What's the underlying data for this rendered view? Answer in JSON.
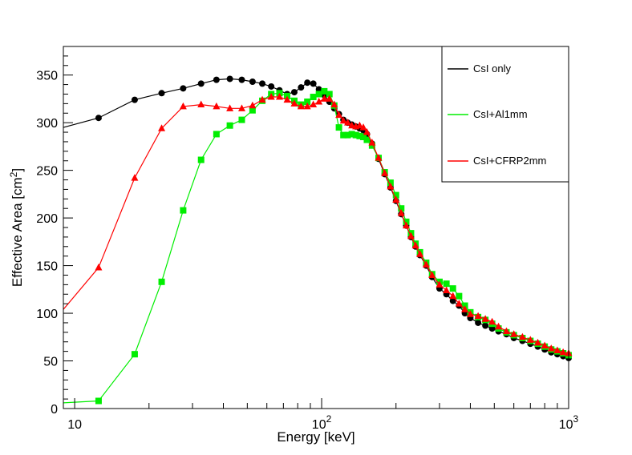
{
  "chart_data": {
    "type": "line",
    "title": "",
    "xlabel": "Energy [keV]",
    "ylabel_main": "Effective Area [cm",
    "ylabel_sup": "2",
    "ylabel_close": "]",
    "xscale": "log",
    "xlim": [
      9,
      1000
    ],
    "ylim": [
      0,
      380
    ],
    "x_tick_labels": [
      {
        "value": 10,
        "base": "10",
        "exp": ""
      },
      {
        "value": 100,
        "base": "10",
        "exp": "2"
      },
      {
        "value": 1000,
        "base": "10",
        "exp": "3"
      }
    ],
    "y_ticks": [
      0,
      50,
      100,
      150,
      200,
      250,
      300,
      350
    ],
    "legend_position": "top-right",
    "series": [
      {
        "name": "CsI only",
        "color": "#000000",
        "marker": "circle",
        "x": [
          9,
          12.5,
          17.5,
          22.5,
          27.5,
          32.5,
          37.5,
          42.5,
          47.5,
          52.5,
          57.5,
          62.5,
          67.5,
          72.5,
          77.5,
          82.5,
          87.5,
          92.5,
          97.5,
          102.5,
          107.5,
          112.5,
          117.5,
          122.5,
          127.5,
          132.5,
          137.5,
          142.5,
          147.5,
          152.5,
          160,
          170,
          180,
          190,
          200,
          210,
          220,
          230,
          240,
          250,
          265,
          280,
          300,
          320,
          340,
          360,
          380,
          400,
          430,
          460,
          490,
          520,
          560,
          600,
          650,
          700,
          750,
          800,
          850,
          900,
          950,
          1000
        ],
        "values": [
          295,
          305,
          324,
          331,
          336,
          341,
          345,
          346,
          345,
          343,
          341,
          338,
          334,
          330,
          332,
          337,
          342,
          341,
          335,
          329,
          322,
          315,
          309,
          303,
          300,
          298,
          296,
          294,
          292,
          288,
          278,
          262,
          246,
          232,
          218,
          204,
          192,
          180,
          170,
          161,
          150,
          138,
          126,
          120,
          113,
          108,
          100,
          95,
          90,
          87,
          84,
          81,
          78,
          74,
          71,
          68,
          65,
          62,
          59,
          57,
          55,
          53
        ]
      },
      {
        "name": "CsI+Al1mm",
        "color": "#00ee00",
        "marker": "square",
        "x": [
          9,
          12.5,
          17.5,
          22.5,
          27.5,
          32.5,
          37.5,
          42.5,
          47.5,
          52.5,
          57.5,
          62.5,
          67.5,
          72.5,
          77.5,
          82.5,
          87.5,
          92.5,
          97.5,
          102.5,
          107.5,
          112.5,
          117.5,
          122.5,
          127.5,
          132.5,
          137.5,
          142.5,
          147.5,
          152.5,
          160,
          170,
          180,
          190,
          200,
          210,
          220,
          230,
          240,
          250,
          265,
          280,
          300,
          320,
          340,
          360,
          380,
          400,
          430,
          460,
          490,
          520,
          560,
          600,
          650,
          700,
          750,
          800,
          850,
          900,
          950,
          1000
        ],
        "values": [
          6,
          8,
          57,
          133,
          208,
          261,
          288,
          297,
          303,
          313,
          323,
          330,
          331,
          328,
          323,
          319,
          322,
          327,
          330,
          333,
          330,
          318,
          295,
          287,
          287,
          288,
          287,
          286,
          285,
          282,
          276,
          263,
          248,
          237,
          224,
          210,
          196,
          184,
          173,
          164,
          153,
          141,
          133,
          131,
          126,
          118,
          108,
          101,
          96,
          93,
          89,
          84,
          80,
          77,
          74,
          71,
          68,
          65,
          62,
          60,
          58,
          56
        ]
      },
      {
        "name": "CsI+CFRP2mm",
        "color": "#ff0000",
        "marker": "triangle",
        "x": [
          9,
          12.5,
          17.5,
          22.5,
          27.5,
          32.5,
          37.5,
          42.5,
          47.5,
          52.5,
          57.5,
          62.5,
          67.5,
          72.5,
          77.5,
          82.5,
          87.5,
          92.5,
          97.5,
          102.5,
          107.5,
          112.5,
          117.5,
          122.5,
          127.5,
          132.5,
          137.5,
          142.5,
          147.5,
          152.5,
          160,
          170,
          180,
          190,
          200,
          210,
          220,
          230,
          240,
          250,
          265,
          280,
          300,
          320,
          340,
          360,
          380,
          400,
          430,
          460,
          490,
          520,
          560,
          600,
          650,
          700,
          750,
          800,
          850,
          900,
          950,
          1000
        ],
        "values": [
          104,
          148,
          242,
          294,
          317,
          319,
          317,
          315,
          315,
          318,
          324,
          327,
          327,
          324,
          320,
          317,
          317,
          319,
          322,
          325,
          325,
          319,
          308,
          302,
          300,
          297,
          296,
          297,
          295,
          290,
          279,
          263,
          247,
          233,
          219,
          205,
          192,
          181,
          171,
          162,
          151,
          140,
          130,
          124,
          118,
          110,
          104,
          99,
          97,
          94,
          91,
          86,
          81,
          78,
          75,
          72,
          69,
          66,
          63,
          61,
          59,
          58
        ]
      }
    ]
  }
}
